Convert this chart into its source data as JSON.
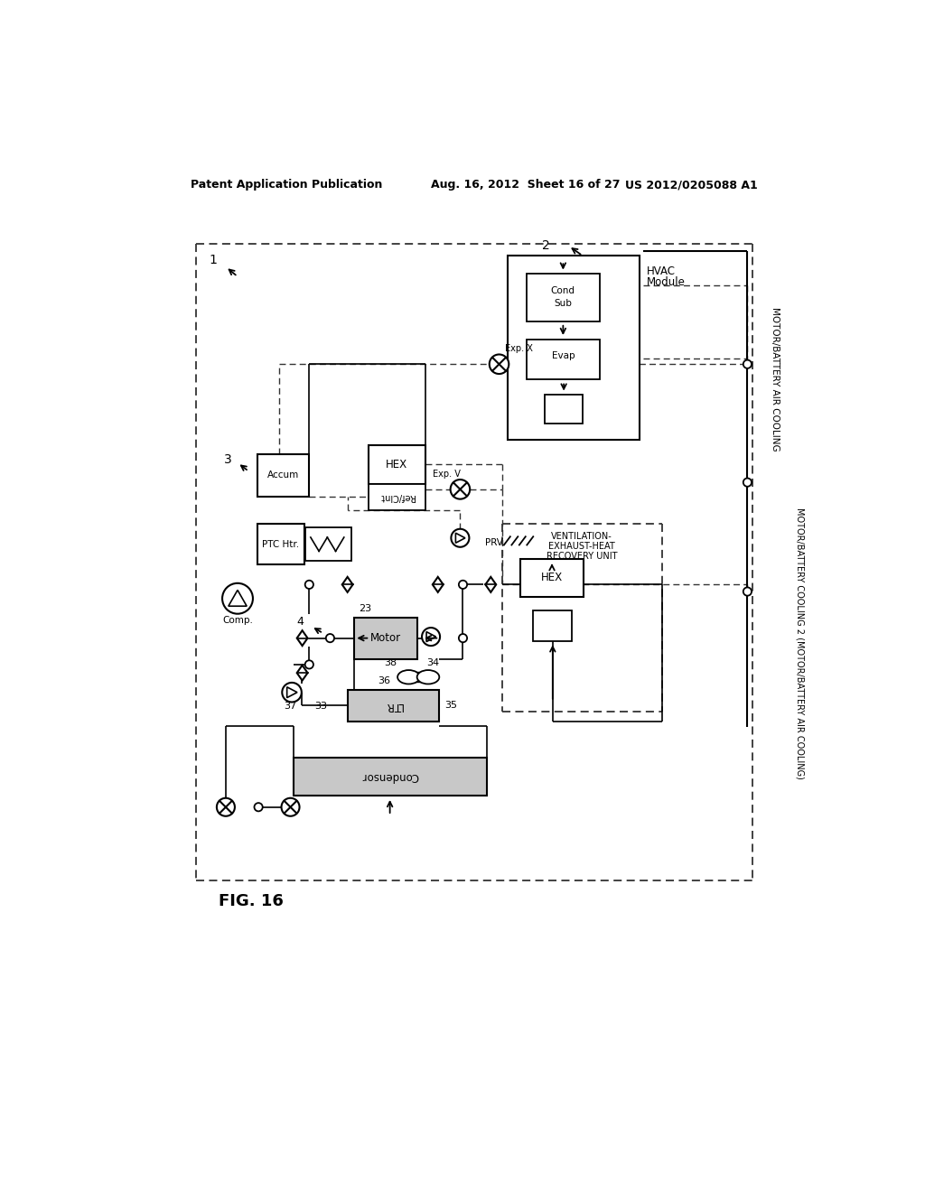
{
  "title_left": "Patent Application Publication",
  "title_mid": "Aug. 16, 2012  Sheet 16 of 27",
  "title_right": "US 2012/0205088 A1",
  "fig_label": "FIG. 16",
  "bg": "#ffffff",
  "lc": "#000000"
}
